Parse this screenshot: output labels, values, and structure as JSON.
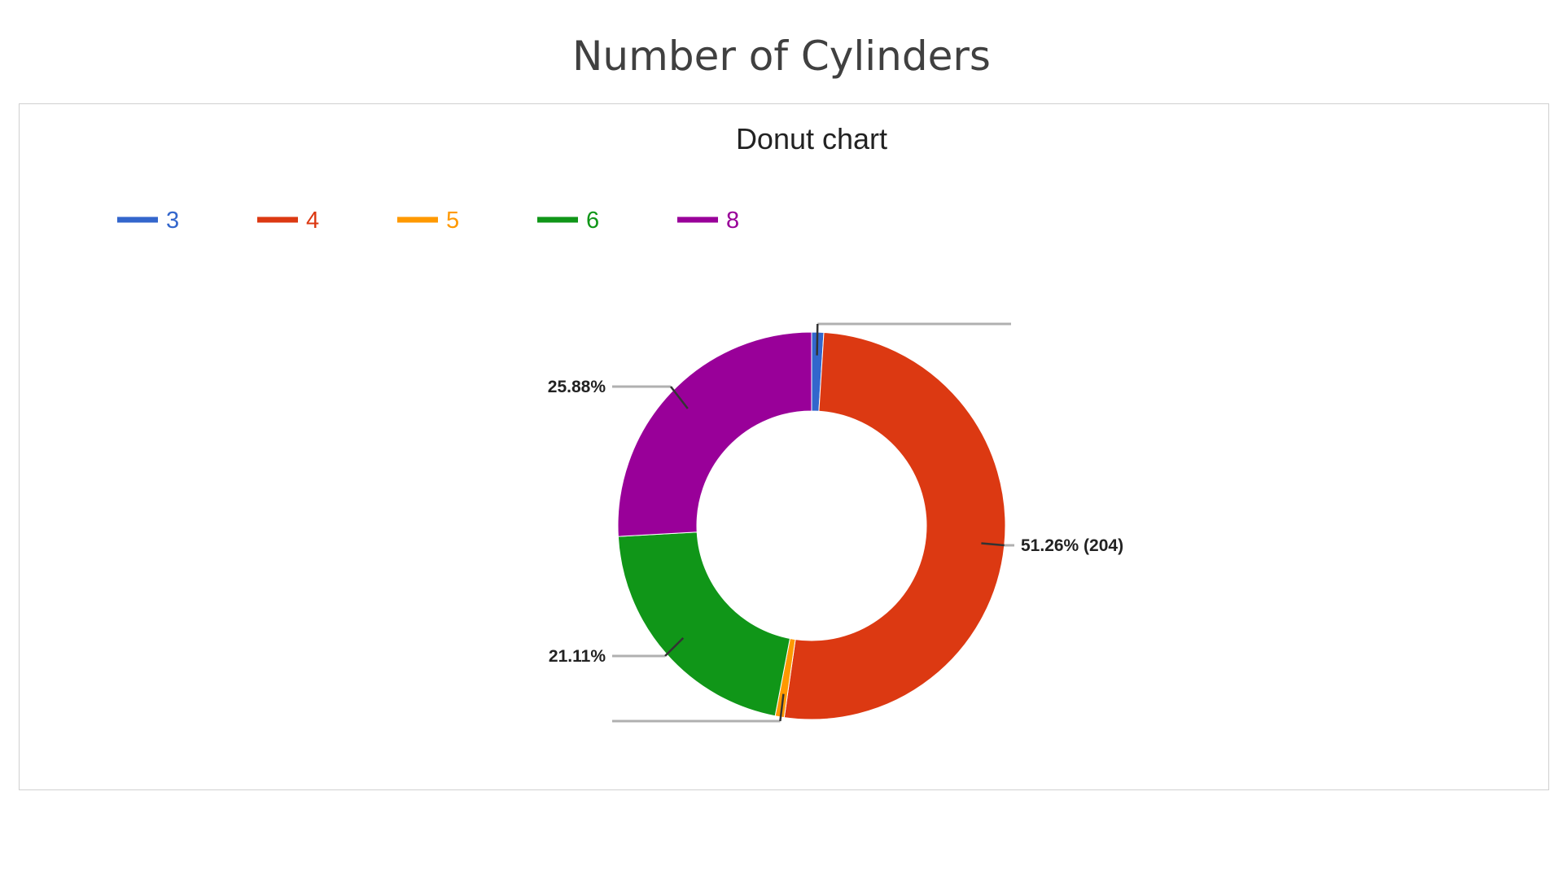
{
  "page": {
    "title": "Number of Cylinders"
  },
  "chart_data": {
    "type": "pie",
    "variant": "donut",
    "title": "Donut chart",
    "legend_position": "top-left",
    "categories": [
      "3",
      "4",
      "5",
      "6",
      "8"
    ],
    "values": [
      4,
      204,
      3,
      84,
      103
    ],
    "percentages": [
      1.01,
      51.26,
      0.75,
      21.11,
      25.88
    ],
    "colors": [
      "#3366cc",
      "#dc3912",
      "#ff9900",
      "#109618",
      "#990099"
    ],
    "data_labels": [
      "",
      "51.26% (204)",
      "",
      "21.11%",
      "25.88%"
    ]
  }
}
